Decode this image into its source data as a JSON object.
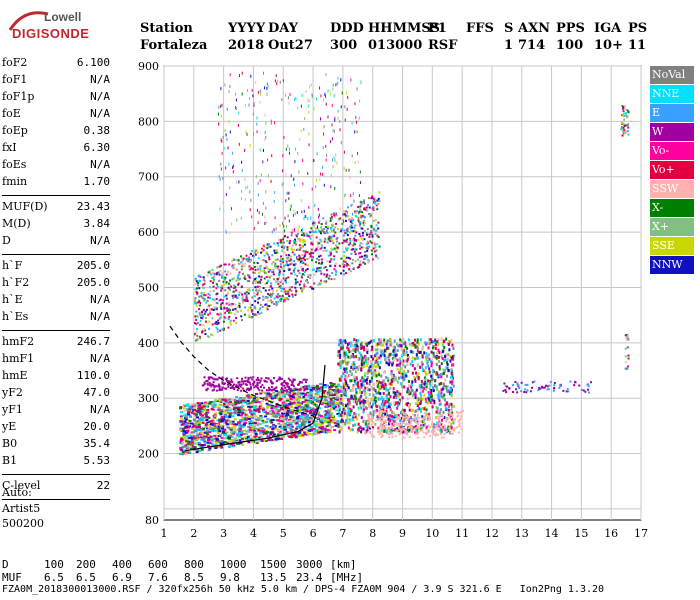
{
  "logo": {
    "line1": "Lowell",
    "line2": "DIGISONDE"
  },
  "header": {
    "labels": [
      "Station",
      "YYYY",
      "DAY",
      "DDD",
      "HHMMSS",
      "P1",
      "FFS",
      "S",
      "AXN",
      "PPS",
      "IGA",
      "PS"
    ],
    "values": [
      "Fortaleza",
      "2018",
      "Out27",
      "300",
      "013000",
      "RSF",
      "",
      "1",
      "714",
      "100",
      "10+",
      "11"
    ]
  },
  "params": {
    "group1": [
      {
        "label": "foF2",
        "value": "6.100"
      },
      {
        "label": "foF1",
        "value": "N/A"
      },
      {
        "label": "foF1p",
        "value": "N/A"
      },
      {
        "label": "foE",
        "value": "N/A"
      },
      {
        "label": "foEp",
        "value": "0.38"
      },
      {
        "label": "fxI",
        "value": "6.30"
      },
      {
        "label": "foEs",
        "value": "N/A"
      },
      {
        "label": "fmin",
        "value": "1.70"
      }
    ],
    "group2": [
      {
        "label": "MUF(D)",
        "value": "23.43"
      },
      {
        "label": "M(D)",
        "value": "3.84"
      },
      {
        "label": "D",
        "value": "N/A"
      }
    ],
    "group3": [
      {
        "label": "h`F",
        "value": "205.0"
      },
      {
        "label": "h`F2",
        "value": "205.0"
      },
      {
        "label": "h`E",
        "value": "N/A"
      },
      {
        "label": "h`Es",
        "value": "N/A"
      }
    ],
    "group4": [
      {
        "label": "hmF2",
        "value": "246.7"
      },
      {
        "label": "hmF1",
        "value": "N/A"
      },
      {
        "label": "hmE",
        "value": "110.0"
      },
      {
        "label": "yF2",
        "value": "47.0"
      },
      {
        "label": "yF1",
        "value": "N/A"
      },
      {
        "label": "yE",
        "value": "20.0"
      },
      {
        "label": "B0",
        "value": "35.4"
      },
      {
        "label": "B1",
        "value": "5.53"
      }
    ],
    "group5": [
      {
        "label": "C-level",
        "value": "22"
      }
    ]
  },
  "auto": {
    "line1": "Auto:",
    "line2": "Artist5",
    "line3": "500200"
  },
  "legend": [
    {
      "label": "NoVal",
      "color": "#808080"
    },
    {
      "label": "NNE",
      "color": "#00e0ff"
    },
    {
      "label": "E",
      "color": "#3aa0ff"
    },
    {
      "label": "W",
      "color": "#a000a0"
    },
    {
      "label": "Vo-",
      "color": "#ff00a0"
    },
    {
      "label": "Vo+",
      "color": "#e00040"
    },
    {
      "label": "SSW",
      "color": "#ffb0b0"
    },
    {
      "label": "X-",
      "color": "#008000"
    },
    {
      "label": "X+",
      "color": "#80c080"
    },
    {
      "label": "SSE",
      "color": "#c8d800"
    },
    {
      "label": "NNW",
      "color": "#1010c0"
    }
  ],
  "bottom": {
    "dist_label": "D",
    "dist_values": [
      "100",
      "200",
      "400",
      "600",
      "800",
      "1000",
      "1500",
      "3000"
    ],
    "dist_unit": "[km]",
    "muf_label": "MUF",
    "muf_values": [
      "6.5",
      "6.5",
      "6.9",
      "7.6",
      "8.5",
      "9.8",
      "13.5",
      "23.4"
    ],
    "muf_unit": "[MHz]",
    "footer": "FZA0M_2018300013000.RSF / 320fx256h 50 kHz 5.0 km / DPS-4 FZA0M 904 / 3.9 S 321.6 E   Ion2Png 1.3.20"
  },
  "chart_data": {
    "type": "scatter",
    "x": {
      "min": 1,
      "max": 17,
      "ticks": [
        1,
        2,
        3,
        4,
        5,
        6,
        7,
        8,
        9,
        10,
        11,
        12,
        13,
        14,
        15,
        16,
        17
      ]
    },
    "y": {
      "min": 80,
      "max": 900,
      "ticks": [
        80,
        200,
        300,
        400,
        500,
        600,
        700,
        800,
        900
      ]
    },
    "grid": true,
    "profile_curve": [
      {
        "f": 1.2,
        "h": 430
      },
      {
        "f": 1.6,
        "h": 400
      },
      {
        "f": 2.0,
        "h": 375
      },
      {
        "f": 2.5,
        "h": 350
      },
      {
        "f": 3.0,
        "h": 332
      },
      {
        "f": 3.5,
        "h": 318
      },
      {
        "f": 4.0,
        "h": 305
      },
      {
        "f": 4.5,
        "h": 295
      },
      {
        "f": 5.0,
        "h": 285
      },
      {
        "f": 5.5,
        "h": 276
      },
      {
        "f": 6.0,
        "h": 268
      },
      {
        "f": 6.1,
        "h": 262
      }
    ],
    "trace": [
      {
        "f": 1.7,
        "h": 205
      },
      {
        "f": 2.5,
        "h": 212
      },
      {
        "f": 3.5,
        "h": 220
      },
      {
        "f": 4.5,
        "h": 228
      },
      {
        "f": 5.5,
        "h": 240
      },
      {
        "f": 6.0,
        "h": 255
      },
      {
        "f": 6.3,
        "h": 300
      },
      {
        "f": 6.4,
        "h": 360
      }
    ]
  }
}
